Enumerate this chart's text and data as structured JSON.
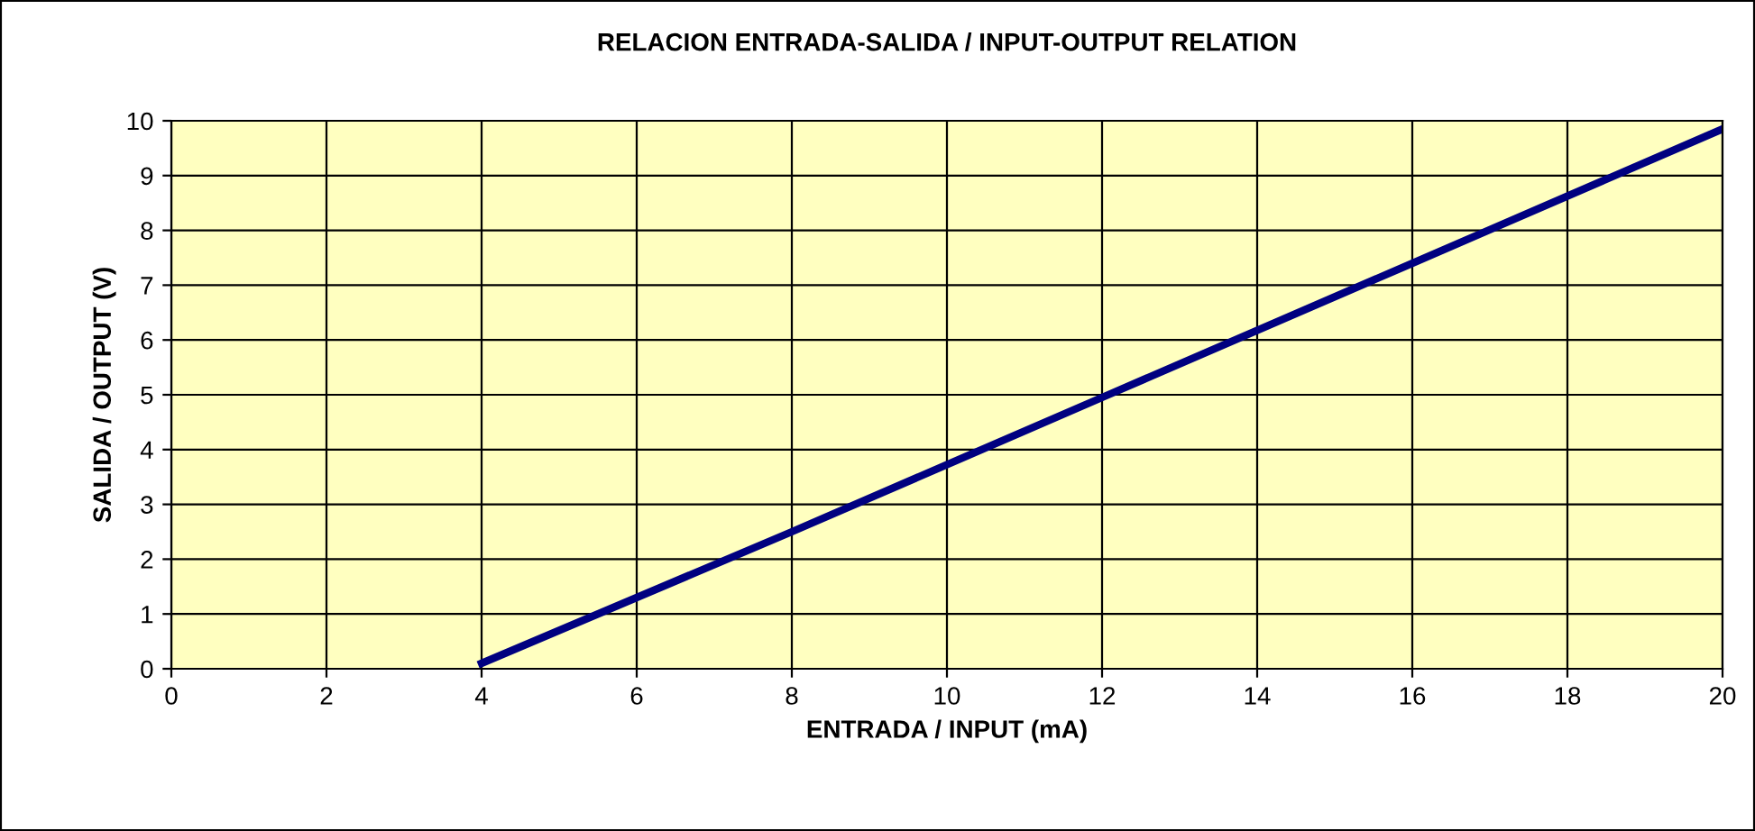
{
  "chart_data": {
    "type": "line",
    "title": "RELACION ENTRADA-SALIDA / INPUT-OUTPUT RELATION",
    "xlabel": "ENTRADA / INPUT (mA)",
    "ylabel": "SALIDA / OUTPUT (V)",
    "series": [
      {
        "color": "#000080",
        "x": [
          4,
          8,
          12,
          16,
          20
        ],
        "values": [
          0.1,
          2.5,
          4.95,
          7.4,
          9.85
        ]
      }
    ],
    "xlim": [
      0,
      20
    ],
    "xticks": [
      0,
      2,
      4,
      6,
      8,
      10,
      12,
      14,
      16,
      18,
      20
    ],
    "ylim": [
      0,
      10
    ],
    "yticks": [
      0,
      1,
      2,
      3,
      4,
      5,
      6,
      7,
      8,
      9,
      10
    ],
    "grid": true,
    "marker": "none",
    "line_style": "solid"
  }
}
